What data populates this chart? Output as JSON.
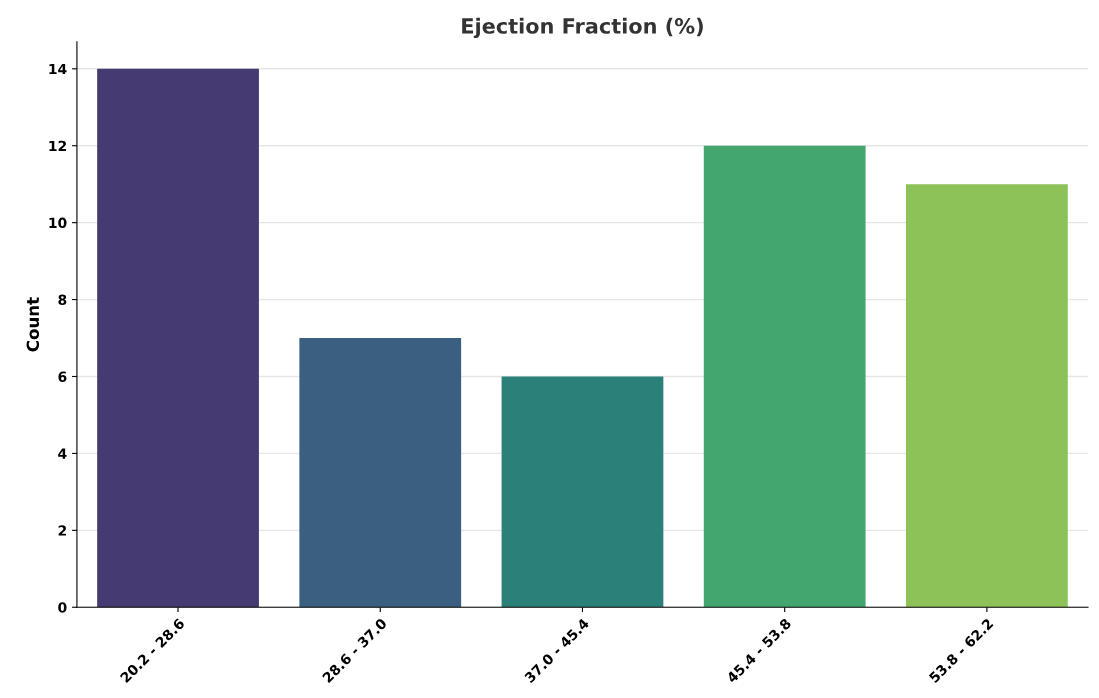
{
  "chart_data": {
    "type": "bar",
    "title": "Ejection Fraction (%)",
    "ylabel": "Count",
    "categories": [
      "20.2 - 28.6",
      "28.6 - 37.0",
      "37.0 - 45.4",
      "45.4 - 53.8",
      "53.8 - 62.2"
    ],
    "values": [
      14,
      7,
      6,
      12,
      11
    ],
    "colors": [
      "#463a72",
      "#3b5f80",
      "#2b8079",
      "#43a66e",
      "#8cc257"
    ],
    "ylim": [
      0,
      14.7
    ],
    "yticks": [
      0,
      2,
      4,
      6,
      8,
      10,
      12,
      14
    ],
    "grid": "y"
  }
}
